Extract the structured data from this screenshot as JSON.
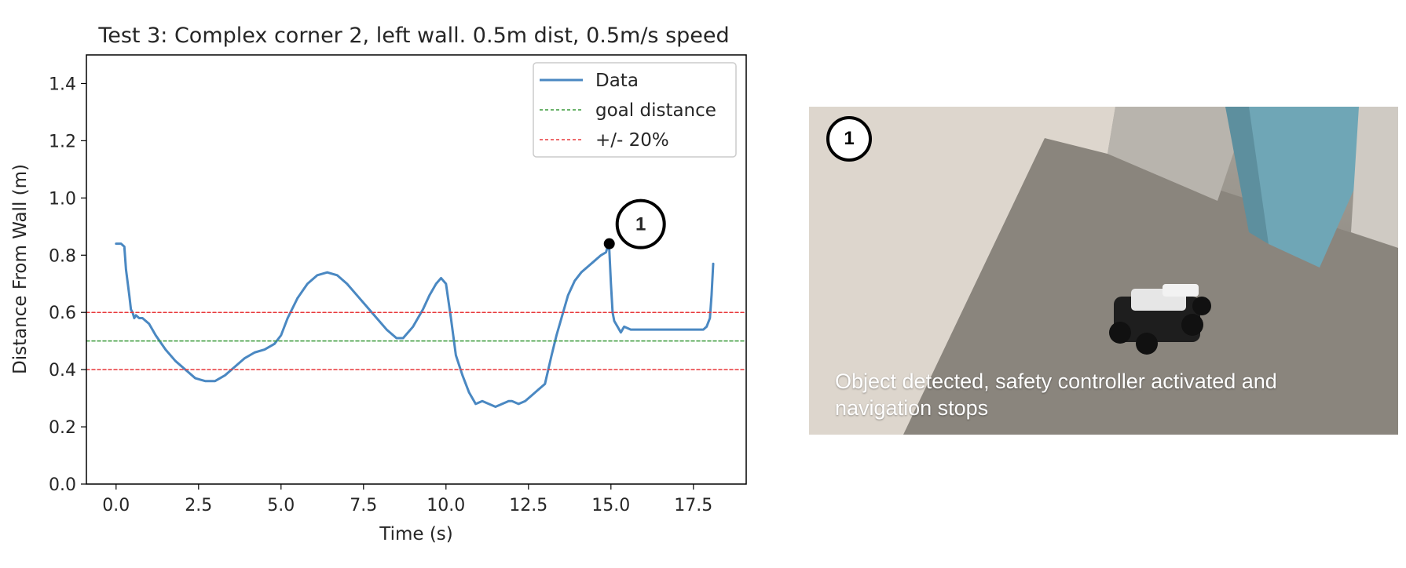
{
  "chart_data": {
    "type": "line",
    "title": "Test 3: Complex corner 2, left wall. 0.5m dist, 0.5m/s speed",
    "xlabel": "Time (s)",
    "ylabel": "Distance From Wall (m)",
    "xlim": [
      -0.9,
      19.1
    ],
    "ylim": [
      0.0,
      1.5
    ],
    "xticks": [
      0.0,
      2.5,
      5.0,
      7.5,
      10.0,
      12.5,
      15.0,
      17.5
    ],
    "xtick_labels": [
      "0.0",
      "2.5",
      "5.0",
      "7.5",
      "10.0",
      "12.5",
      "15.0",
      "17.5"
    ],
    "yticks": [
      0.0,
      0.2,
      0.4,
      0.6,
      0.8,
      1.0,
      1.2,
      1.4
    ],
    "ytick_labels": [
      "0.0",
      "0.2",
      "0.4",
      "0.6",
      "0.8",
      "1.0",
      "1.2",
      "1.4"
    ],
    "grid": false,
    "legend_position": "top-right",
    "series": [
      {
        "name": "Data",
        "color": "#4a88c2",
        "style": "solid",
        "x": [
          0.0,
          0.15,
          0.25,
          0.3,
          0.4,
          0.45,
          0.5,
          0.55,
          0.6,
          0.7,
          0.8,
          0.9,
          1.0,
          1.2,
          1.5,
          1.8,
          2.1,
          2.4,
          2.7,
          3.0,
          3.3,
          3.6,
          3.9,
          4.2,
          4.5,
          4.8,
          5.0,
          5.2,
          5.5,
          5.8,
          6.1,
          6.4,
          6.7,
          7.0,
          7.3,
          7.6,
          7.9,
          8.2,
          8.5,
          8.7,
          9.0,
          9.3,
          9.5,
          9.7,
          9.85,
          10.0,
          10.15,
          10.3,
          10.5,
          10.7,
          10.9,
          11.1,
          11.3,
          11.5,
          11.7,
          11.9,
          12.0,
          12.2,
          12.4,
          12.6,
          12.8,
          13.0,
          13.2,
          13.35,
          13.5,
          13.7,
          13.9,
          14.1,
          14.3,
          14.5,
          14.7,
          14.85,
          14.9,
          14.95,
          15.0,
          15.05,
          15.1,
          15.2,
          15.3,
          15.4,
          15.6,
          16.0,
          16.5,
          17.0,
          17.5,
          17.8,
          17.9,
          18.0,
          18.05,
          18.1
        ],
        "y": [
          0.84,
          0.84,
          0.83,
          0.75,
          0.66,
          0.61,
          0.6,
          0.58,
          0.59,
          0.58,
          0.58,
          0.57,
          0.56,
          0.52,
          0.47,
          0.43,
          0.4,
          0.37,
          0.36,
          0.36,
          0.38,
          0.41,
          0.44,
          0.46,
          0.47,
          0.49,
          0.52,
          0.58,
          0.65,
          0.7,
          0.73,
          0.74,
          0.73,
          0.7,
          0.66,
          0.62,
          0.58,
          0.54,
          0.51,
          0.51,
          0.55,
          0.61,
          0.66,
          0.7,
          0.72,
          0.7,
          0.58,
          0.45,
          0.38,
          0.32,
          0.28,
          0.29,
          0.28,
          0.27,
          0.28,
          0.29,
          0.29,
          0.28,
          0.29,
          0.31,
          0.33,
          0.35,
          0.45,
          0.52,
          0.58,
          0.66,
          0.71,
          0.74,
          0.76,
          0.78,
          0.8,
          0.81,
          0.83,
          0.82,
          0.7,
          0.6,
          0.57,
          0.55,
          0.53,
          0.55,
          0.54,
          0.54,
          0.54,
          0.54,
          0.54,
          0.54,
          0.55,
          0.58,
          0.66,
          0.77
        ]
      },
      {
        "name": "goal distance",
        "color": "#3a9a3a",
        "style": "dashed",
        "x": [
          -0.9,
          19.1
        ],
        "y": [
          0.5,
          0.5
        ]
      },
      {
        "name": "+/- 20%",
        "color": "#e8383b",
        "style": "dashed",
        "x": [
          -0.9,
          19.1
        ],
        "y": [
          0.6,
          0.6
        ]
      },
      {
        "name": "",
        "color": "#e8383b",
        "style": "dashed",
        "x": [
          -0.9,
          19.1
        ],
        "y": [
          0.4,
          0.4
        ]
      }
    ],
    "annotations": [
      {
        "label": "1",
        "x": 14.95,
        "y": 0.84
      }
    ]
  },
  "photo": {
    "marker_label": "1",
    "caption": "Object detected, safety controller activated and navigation stops"
  }
}
